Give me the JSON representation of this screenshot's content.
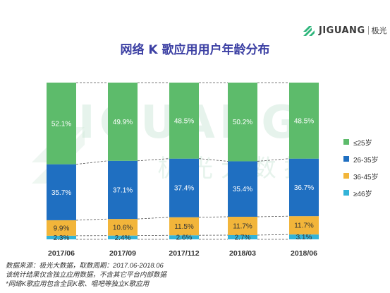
{
  "header": {
    "brand": "JIGUANG",
    "brand_cn": "极光",
    "title": "网络 K 歌应用用户年龄分布"
  },
  "watermark": {
    "text_en": "JIGUANG",
    "text_cn": "极 光 大 数 据"
  },
  "chart_data": {
    "type": "bar",
    "stacked": true,
    "percent_stacked": true,
    "categories": [
      "2017/06",
      "2017/09",
      "2017/112",
      "2018/03",
      "2018/06"
    ],
    "series": [
      {
        "name": "≤25岁",
        "color": "#5dbb6b",
        "values": [
          52.1,
          49.9,
          48.5,
          50.2,
          48.5
        ],
        "labels": [
          "52.1%",
          "49.9%",
          "48.5%",
          "50.2%",
          "48.5%"
        ]
      },
      {
        "name": "26-35岁",
        "color": "#1f6fc1",
        "values": [
          35.7,
          37.1,
          37.4,
          35.4,
          36.7
        ],
        "labels": [
          "35.7%",
          "37.1%",
          "37.4%",
          "35.4%",
          "36.7%"
        ]
      },
      {
        "name": "36-45岁",
        "color": "#f2b53a",
        "values": [
          9.9,
          10.6,
          11.5,
          11.7,
          11.7
        ],
        "labels": [
          "9.9%",
          "10.6%",
          "11.5%",
          "11.7%",
          "11.7%"
        ]
      },
      {
        "name": "≥46岁",
        "color": "#33b3d8",
        "values": [
          2.3,
          2.4,
          2.6,
          2.7,
          3.1
        ],
        "labels": [
          "2.3%",
          "2.4%",
          "2.6%",
          "2.7%",
          "3.1%"
        ]
      }
    ],
    "stack_order_bottom_to_top": [
      "≥46岁",
      "36-45岁",
      "26-35岁",
      "≤25岁"
    ],
    "legend_position": "right",
    "grid": false,
    "connector_lines": true
  },
  "footer": {
    "lines": [
      "数据来源：极光大数据，取数周期：2017.06-2018.06",
      "该统计结果仅含独立应用数据，不含其它平台内部数据",
      "*网络K歌应用包含全民K歌、唱吧等独立K歌应用"
    ]
  }
}
